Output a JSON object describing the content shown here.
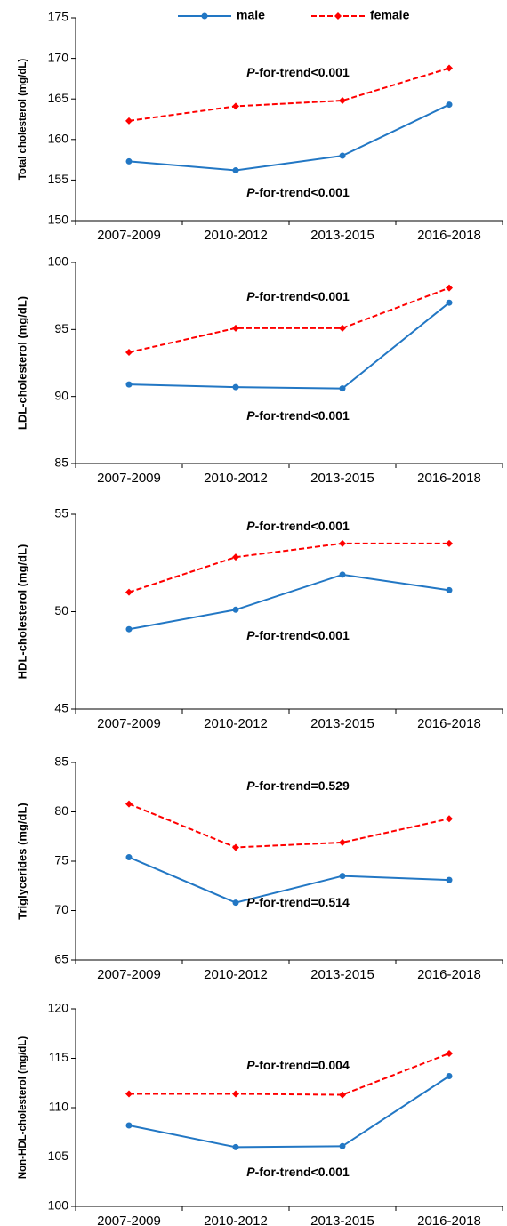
{
  "chart_data": [
    {
      "type": "line",
      "y_label": "Total cholesterol (mg/dL)",
      "categories": [
        "2007-2009",
        "2010-2012",
        "2013-2015",
        "2016-2018"
      ],
      "series": [
        {
          "name": "male",
          "color": "#2277c4",
          "marker": "circle",
          "dashed": false,
          "values": [
            157.3,
            156.2,
            158.0,
            164.3
          ]
        },
        {
          "name": "female",
          "color": "#ff0000",
          "marker": "diamond",
          "dashed": true,
          "values": [
            162.3,
            164.1,
            164.8,
            168.8
          ]
        }
      ],
      "annotations": [
        {
          "text": "P-for-trend<0.001",
          "color": "#ff0000"
        },
        {
          "text": "P-for-trend<0.001",
          "color": "#2277c4"
        }
      ],
      "ylim": [
        150,
        175
      ],
      "yticks": [
        150,
        155,
        160,
        165,
        170,
        175
      ]
    },
    {
      "type": "line",
      "y_label": "LDL-cholesterol (mg/dL)",
      "categories": [
        "2007-2009",
        "2010-2012",
        "2013-2015",
        "2016-2018"
      ],
      "series": [
        {
          "color": "#2277c4",
          "marker": "circle",
          "dashed": false,
          "values": [
            90.9,
            90.7,
            90.6,
            97.0
          ]
        },
        {
          "color": "#ff0000",
          "marker": "diamond",
          "dashed": true,
          "values": [
            93.3,
            95.1,
            95.1,
            98.1
          ]
        }
      ],
      "annotations": [
        {
          "text": "P-for-trend<0.001",
          "color": "#ff0000"
        },
        {
          "text": "P-for-trend<0.001",
          "color": "#2277c4"
        }
      ],
      "ylim": [
        85,
        100
      ],
      "yticks": [
        85,
        90,
        95,
        100
      ]
    },
    {
      "type": "line",
      "y_label": "HDL-cholesterol (mg/dL)",
      "categories": [
        "2007-2009",
        "2010-2012",
        "2013-2015",
        "2016-2018"
      ],
      "series": [
        {
          "color": "#2277c4",
          "marker": "circle",
          "dashed": false,
          "values": [
            49.1,
            50.1,
            51.9,
            51.1
          ]
        },
        {
          "color": "#ff0000",
          "marker": "diamond",
          "dashed": true,
          "values": [
            51.0,
            52.8,
            53.5,
            53.5
          ]
        }
      ],
      "annotations": [
        {
          "text": "P-for-trend<0.001",
          "color": "#ff0000"
        },
        {
          "text": "P-for-trend<0.001",
          "color": "#2277c4"
        }
      ],
      "ylim": [
        45,
        55
      ],
      "yticks": [
        45,
        50,
        55
      ]
    },
    {
      "type": "line",
      "y_label": "Triglycerides (mg/dL)",
      "categories": [
        "2007-2009",
        "2010-2012",
        "2013-2015",
        "2016-2018"
      ],
      "series": [
        {
          "color": "#2277c4",
          "marker": "circle",
          "dashed": false,
          "values": [
            75.4,
            70.8,
            73.5,
            73.1
          ]
        },
        {
          "color": "#ff0000",
          "marker": "diamond",
          "dashed": true,
          "values": [
            80.8,
            76.4,
            76.9,
            79.3
          ]
        }
      ],
      "annotations": [
        {
          "text": "P-for-trend=0.529",
          "color": "#ff0000"
        },
        {
          "text": "P-for-trend=0.514",
          "color": "#2277c4"
        }
      ],
      "ylim": [
        65,
        85
      ],
      "yticks": [
        65,
        70,
        75,
        80,
        85
      ]
    },
    {
      "type": "line",
      "y_label": "Non-HDL-cholesterol (mg/dL)",
      "categories": [
        "2007-2009",
        "2010-2012",
        "2013-2015",
        "2016-2018"
      ],
      "series": [
        {
          "color": "#2277c4",
          "marker": "circle",
          "dashed": false,
          "values": [
            108.2,
            106.0,
            106.1,
            113.2
          ]
        },
        {
          "color": "#ff0000",
          "marker": "diamond",
          "dashed": true,
          "values": [
            111.4,
            111.4,
            111.3,
            115.5
          ]
        }
      ],
      "annotations": [
        {
          "text": "P-for-trend=0.004",
          "color": "#ff0000"
        },
        {
          "text": "P-for-trend<0.001",
          "color": "#2277c4"
        }
      ],
      "ylim": [
        100,
        120
      ],
      "yticks": [
        100,
        105,
        110,
        115,
        120
      ]
    }
  ]
}
